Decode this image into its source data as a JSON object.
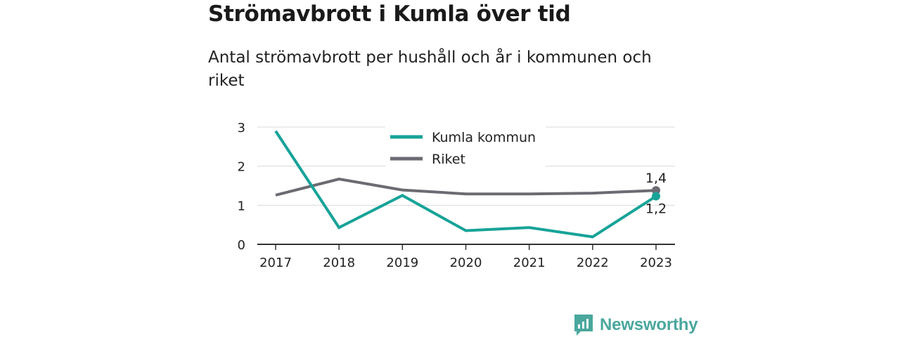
{
  "title": "Strömavbrott i Kumla över tid",
  "subtitle": "Antal strömavbrott per hushåll och år i kommunen och riket",
  "brand": {
    "name": "Newsworthy",
    "icon": "newsworthy-logo-icon",
    "color": "#4aa79d"
  },
  "chart_data": {
    "type": "line",
    "x": [
      "2017",
      "2018",
      "2019",
      "2020",
      "2021",
      "2022",
      "2023"
    ],
    "ylim": [
      0,
      3
    ],
    "yticks": [
      "0",
      "1",
      "2",
      "3"
    ],
    "grid": true,
    "legend_position": "top-center",
    "series": [
      {
        "name": "Kumla kommun",
        "color": "#17a398",
        "values": [
          2.9,
          0.43,
          1.25,
          0.35,
          0.43,
          0.19,
          1.23
        ],
        "end_label": "1,2"
      },
      {
        "name": "Riket",
        "color": "#6d6a73",
        "values": [
          1.26,
          1.67,
          1.39,
          1.29,
          1.29,
          1.31,
          1.38
        ],
        "end_label": "1,4"
      }
    ]
  }
}
